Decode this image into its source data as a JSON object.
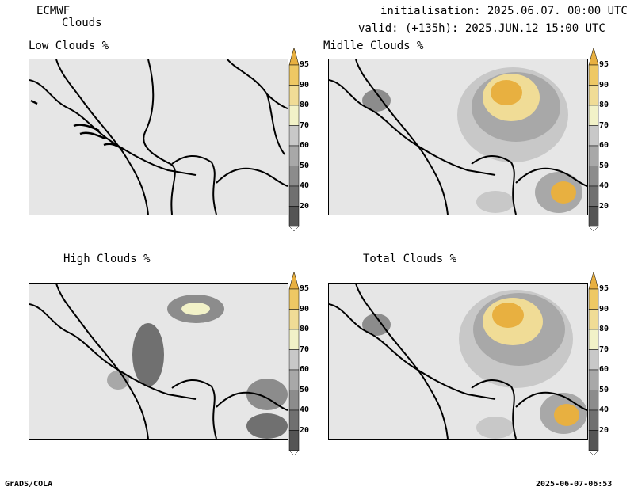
{
  "header": {
    "model": "ECMWF",
    "parameter": "Clouds",
    "init": "initialisation: 2025.06.07. 00:00 UTC",
    "valid": "valid: (+135h): 2025.JUN.12 15:00 UTC"
  },
  "panels": [
    {
      "title": "Low Clouds %"
    },
    {
      "title": "Midlle Clouds %"
    },
    {
      "title": "High Clouds %"
    },
    {
      "title": "Total Clouds %"
    }
  ],
  "colorbar": {
    "levels": [
      "20",
      "30",
      "40",
      "50",
      "60",
      "70",
      "80",
      "90",
      "95"
    ],
    "colors": [
      "#555555",
      "#707070",
      "#8c8c8c",
      "#a8a8a8",
      "#c8c8c8",
      "#f2f2c8",
      "#f0dc96",
      "#eec864",
      "#e8b040"
    ]
  },
  "footer": {
    "left": "GrADS/COLA",
    "right": "2025-06-07-06:53"
  }
}
